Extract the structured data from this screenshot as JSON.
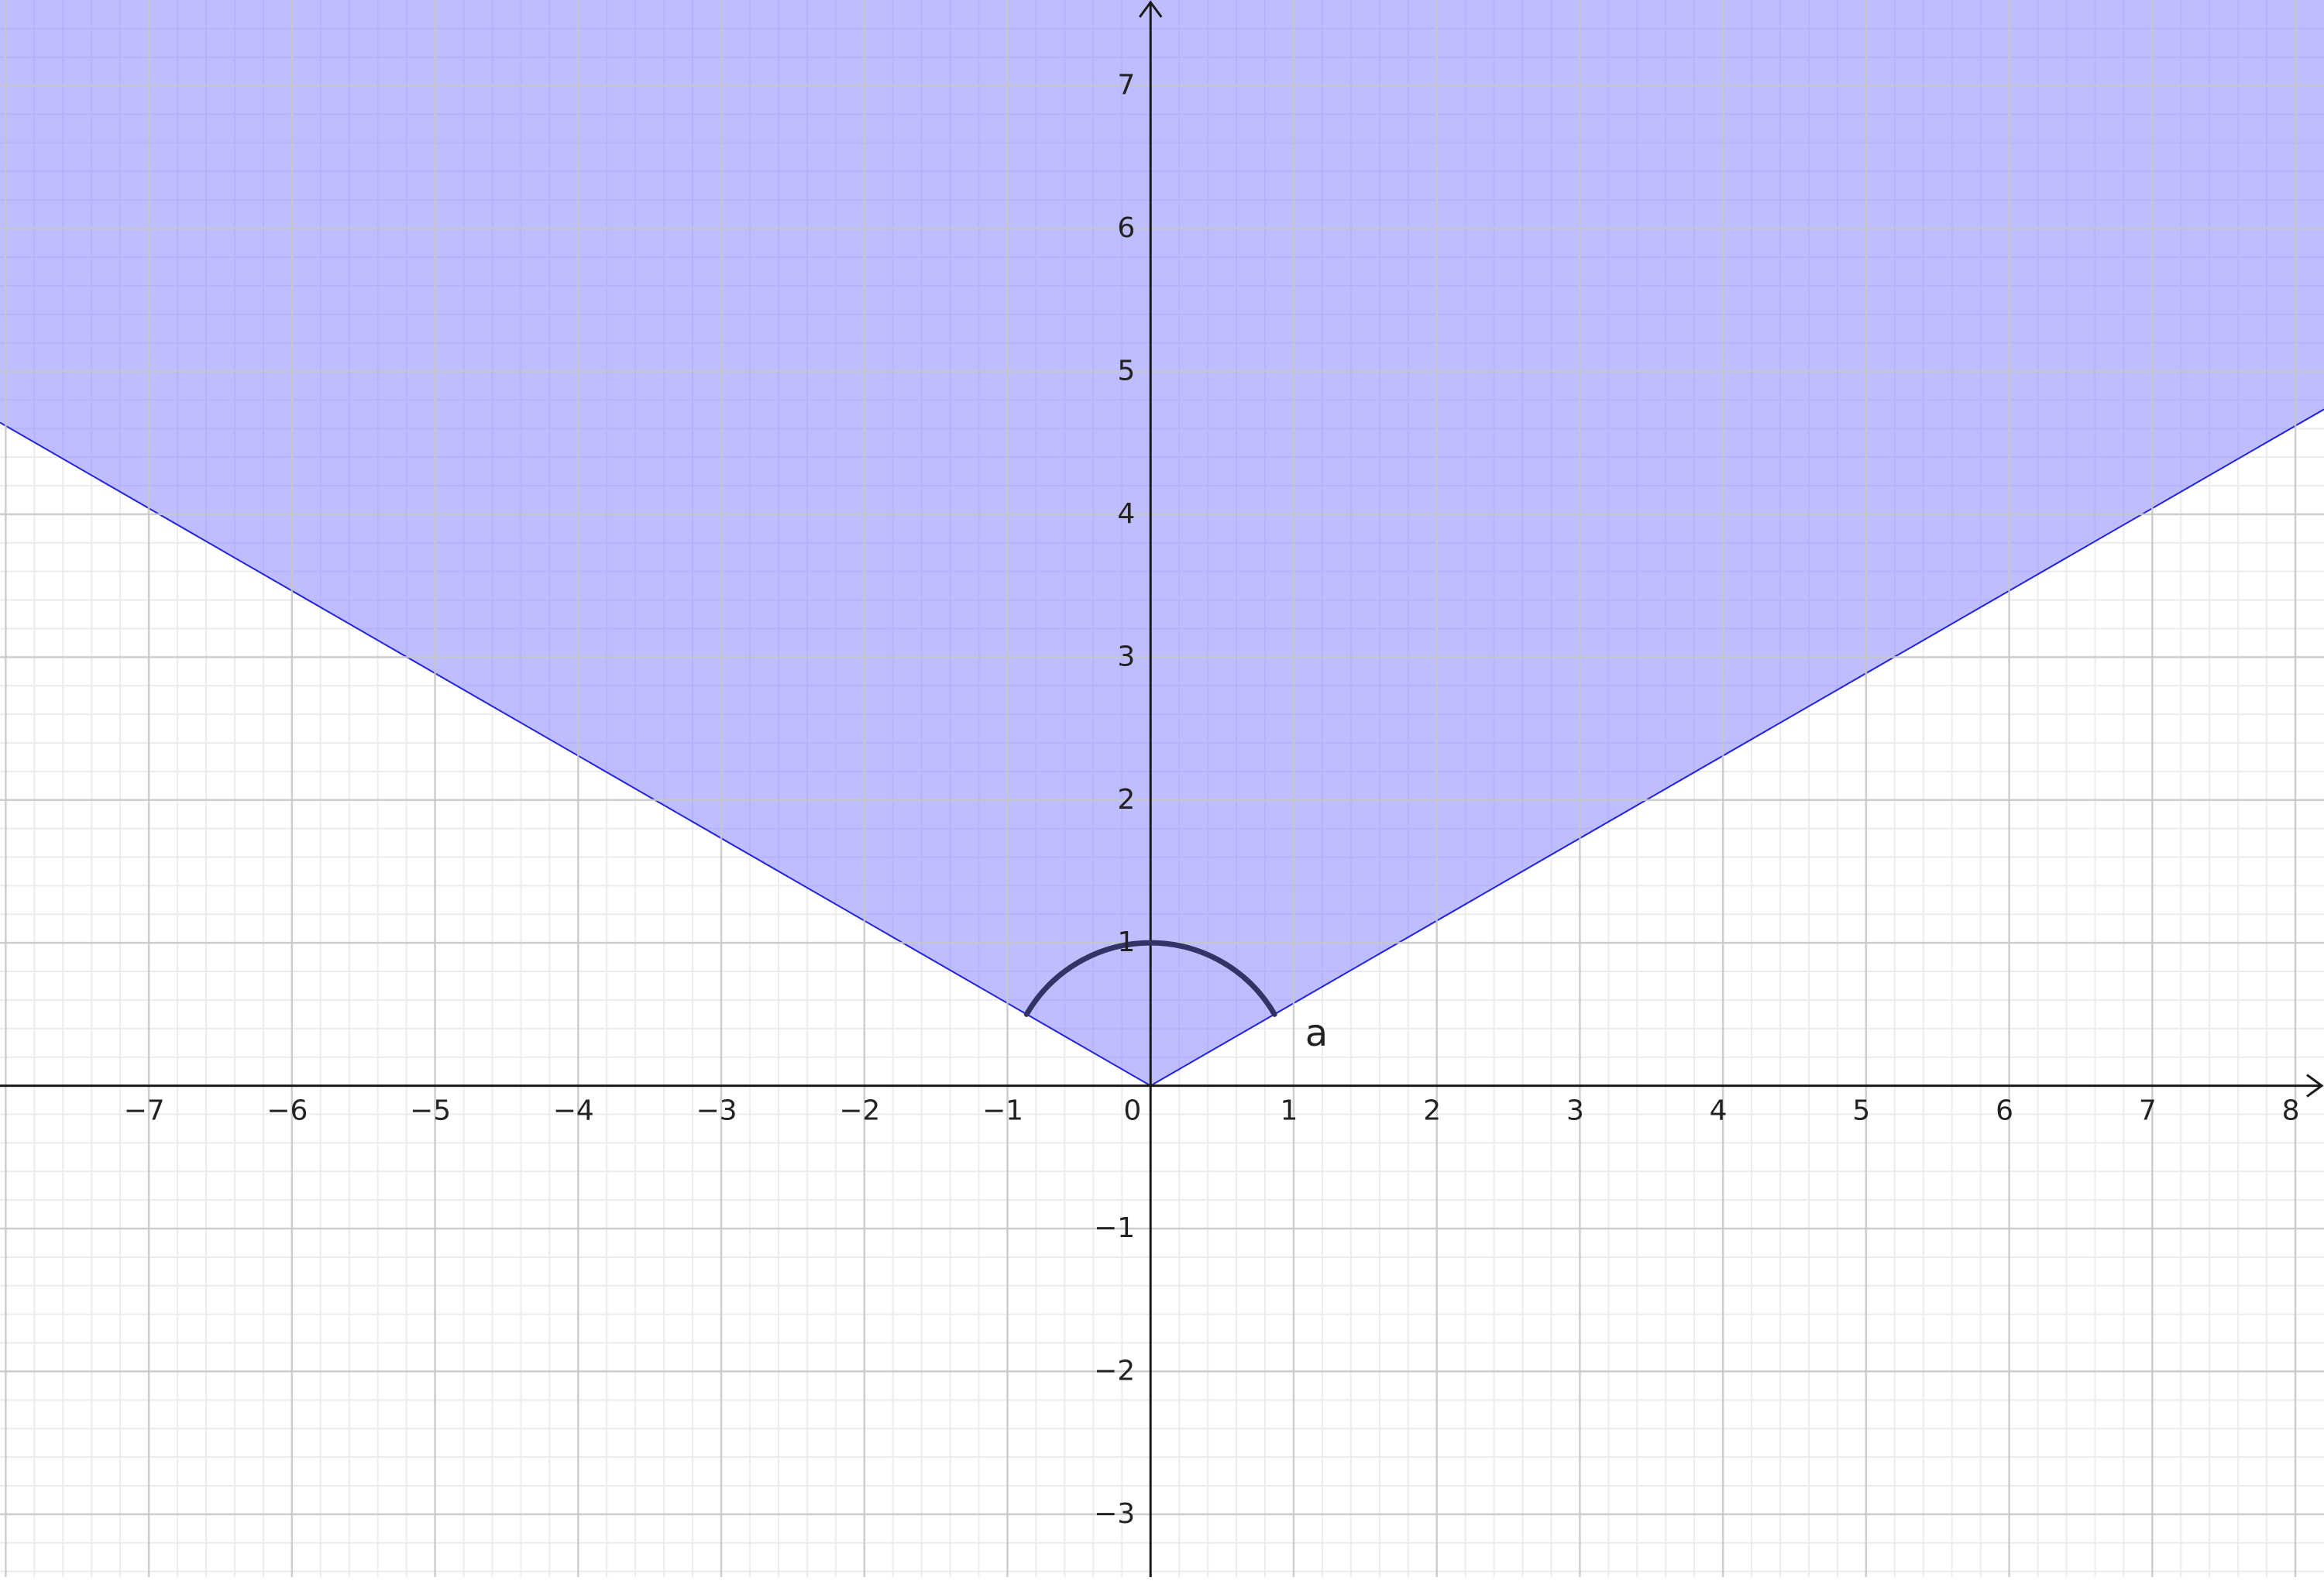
{
  "graph": {
    "x_range": [
      -8.04,
      8.2
    ],
    "y_range": [
      -3.44,
      7.6
    ],
    "major_step": 1,
    "minor_per_major": 5,
    "x_tick_labels": [
      {
        "value": -7,
        "text": "−7"
      },
      {
        "value": -6,
        "text": "−6"
      },
      {
        "value": -5,
        "text": "−5"
      },
      {
        "value": -4,
        "text": "−4"
      },
      {
        "value": -3,
        "text": "−3"
      },
      {
        "value": -2,
        "text": "−2"
      },
      {
        "value": -1,
        "text": "−1"
      },
      {
        "value": 0,
        "text": "0"
      },
      {
        "value": 1,
        "text": "1"
      },
      {
        "value": 2,
        "text": "2"
      },
      {
        "value": 3,
        "text": "3"
      },
      {
        "value": 4,
        "text": "4"
      },
      {
        "value": 5,
        "text": "5"
      },
      {
        "value": 6,
        "text": "6"
      },
      {
        "value": 7,
        "text": "7"
      },
      {
        "value": 8,
        "text": "8"
      }
    ],
    "y_tick_labels": [
      {
        "value": -3,
        "text": "−3"
      },
      {
        "value": -2,
        "text": "−2"
      },
      {
        "value": -1,
        "text": "−1"
      },
      {
        "value": 1,
        "text": "1"
      },
      {
        "value": 2,
        "text": "2"
      },
      {
        "value": 3,
        "text": "3"
      },
      {
        "value": 4,
        "text": "4"
      },
      {
        "value": 5,
        "text": "5"
      },
      {
        "value": 6,
        "text": "6"
      },
      {
        "value": 7,
        "text": "7"
      }
    ],
    "colors": {
      "region_fill": "#7b7bff",
      "region_opacity": 0.5,
      "region_edge": "#2222dd",
      "arc": "#333366",
      "axis": "#1a1a1a",
      "grid_major": "#c8c8c8",
      "grid_minor": "#ececec"
    }
  },
  "shaded_region": {
    "vertex": [
      0,
      0
    ],
    "left_ray_slope": -0.5774,
    "right_ray_slope": 0.5774
  },
  "angle_arc": {
    "center": [
      0,
      0
    ],
    "radius": 1,
    "start_deg": 30,
    "end_deg": 150,
    "label": "a",
    "label_anchor": [
      1.08,
      0.35
    ]
  }
}
